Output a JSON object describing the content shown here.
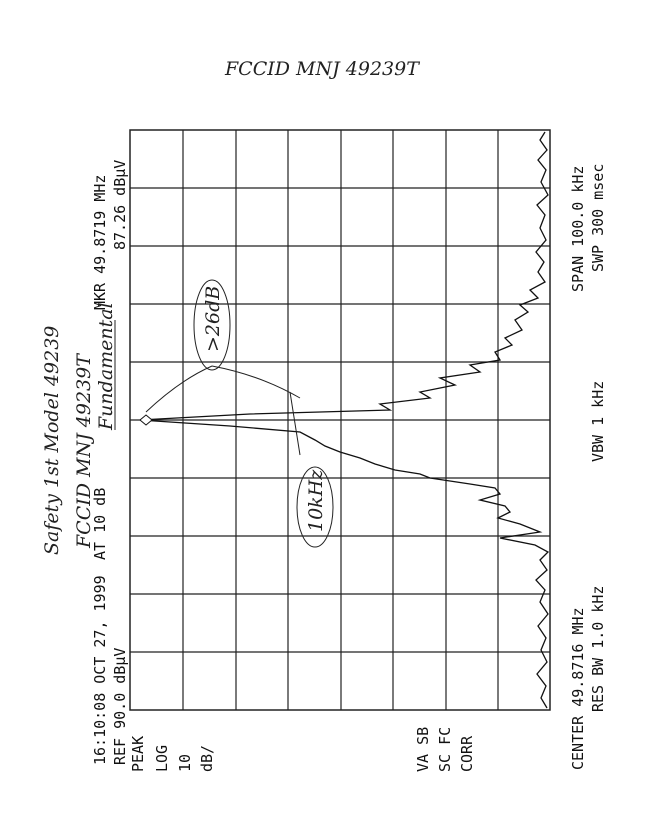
{
  "header": {
    "title": "FCCID MNJ 49239T"
  },
  "handwritten": {
    "product": "Safety 1st Model 49239",
    "fccid": "FCCID MNJ 49239T",
    "fundamental": "Fundamental",
    "suppression": ">26dB",
    "bandwidth": "10kHz"
  },
  "analyzer": {
    "timestamp": "16:10:08 OCT 27, 1999",
    "attenuation": "AT 10 dB",
    "marker_freq": "MKR 49.8719 MHz",
    "reference": "REF 90.0 dBμV",
    "marker_level": "87.26 dBμV",
    "left_labels": [
      "PEAK",
      "LOG",
      "10",
      "dB/"
    ],
    "correction_labels": [
      "VA SB",
      "SC FC",
      "CORR"
    ],
    "center": "CENTER 49.8716 MHz",
    "res_bw": "RES BW 1.0 kHz",
    "vbw": "VBW 1 kHz",
    "span": "SPAN 100.0 kHz",
    "sweep": "SWP 300 msec"
  }
}
